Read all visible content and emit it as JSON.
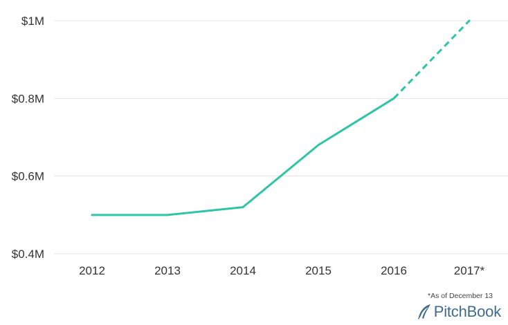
{
  "chart_data": {
    "type": "line",
    "title": "",
    "xlabel": "",
    "ylabel": "",
    "categories": [
      "2012",
      "2013",
      "2014",
      "2015",
      "2016",
      "2017*"
    ],
    "series": [
      {
        "values": [
          0.5,
          0.5,
          0.52,
          0.68,
          0.8,
          1.0
        ],
        "solid_through": "2016",
        "dashed_from": "2016"
      }
    ],
    "ylim": [
      0.4,
      1.0
    ],
    "yticks": [
      0.4,
      0.6,
      0.8,
      1.0
    ],
    "ytick_labels": [
      "$0.4M",
      "$0.6M",
      "$0.8M",
      "$1M"
    ],
    "grid": true,
    "legend": "none",
    "line_color": "#2ec4a6",
    "grid_color": "#e3e3e3"
  },
  "footnote": "*As of December 13",
  "brand": {
    "logo_icon": "pitchbook-leaf-icon",
    "name": "PitchBook",
    "color": "#3e6b8e"
  }
}
